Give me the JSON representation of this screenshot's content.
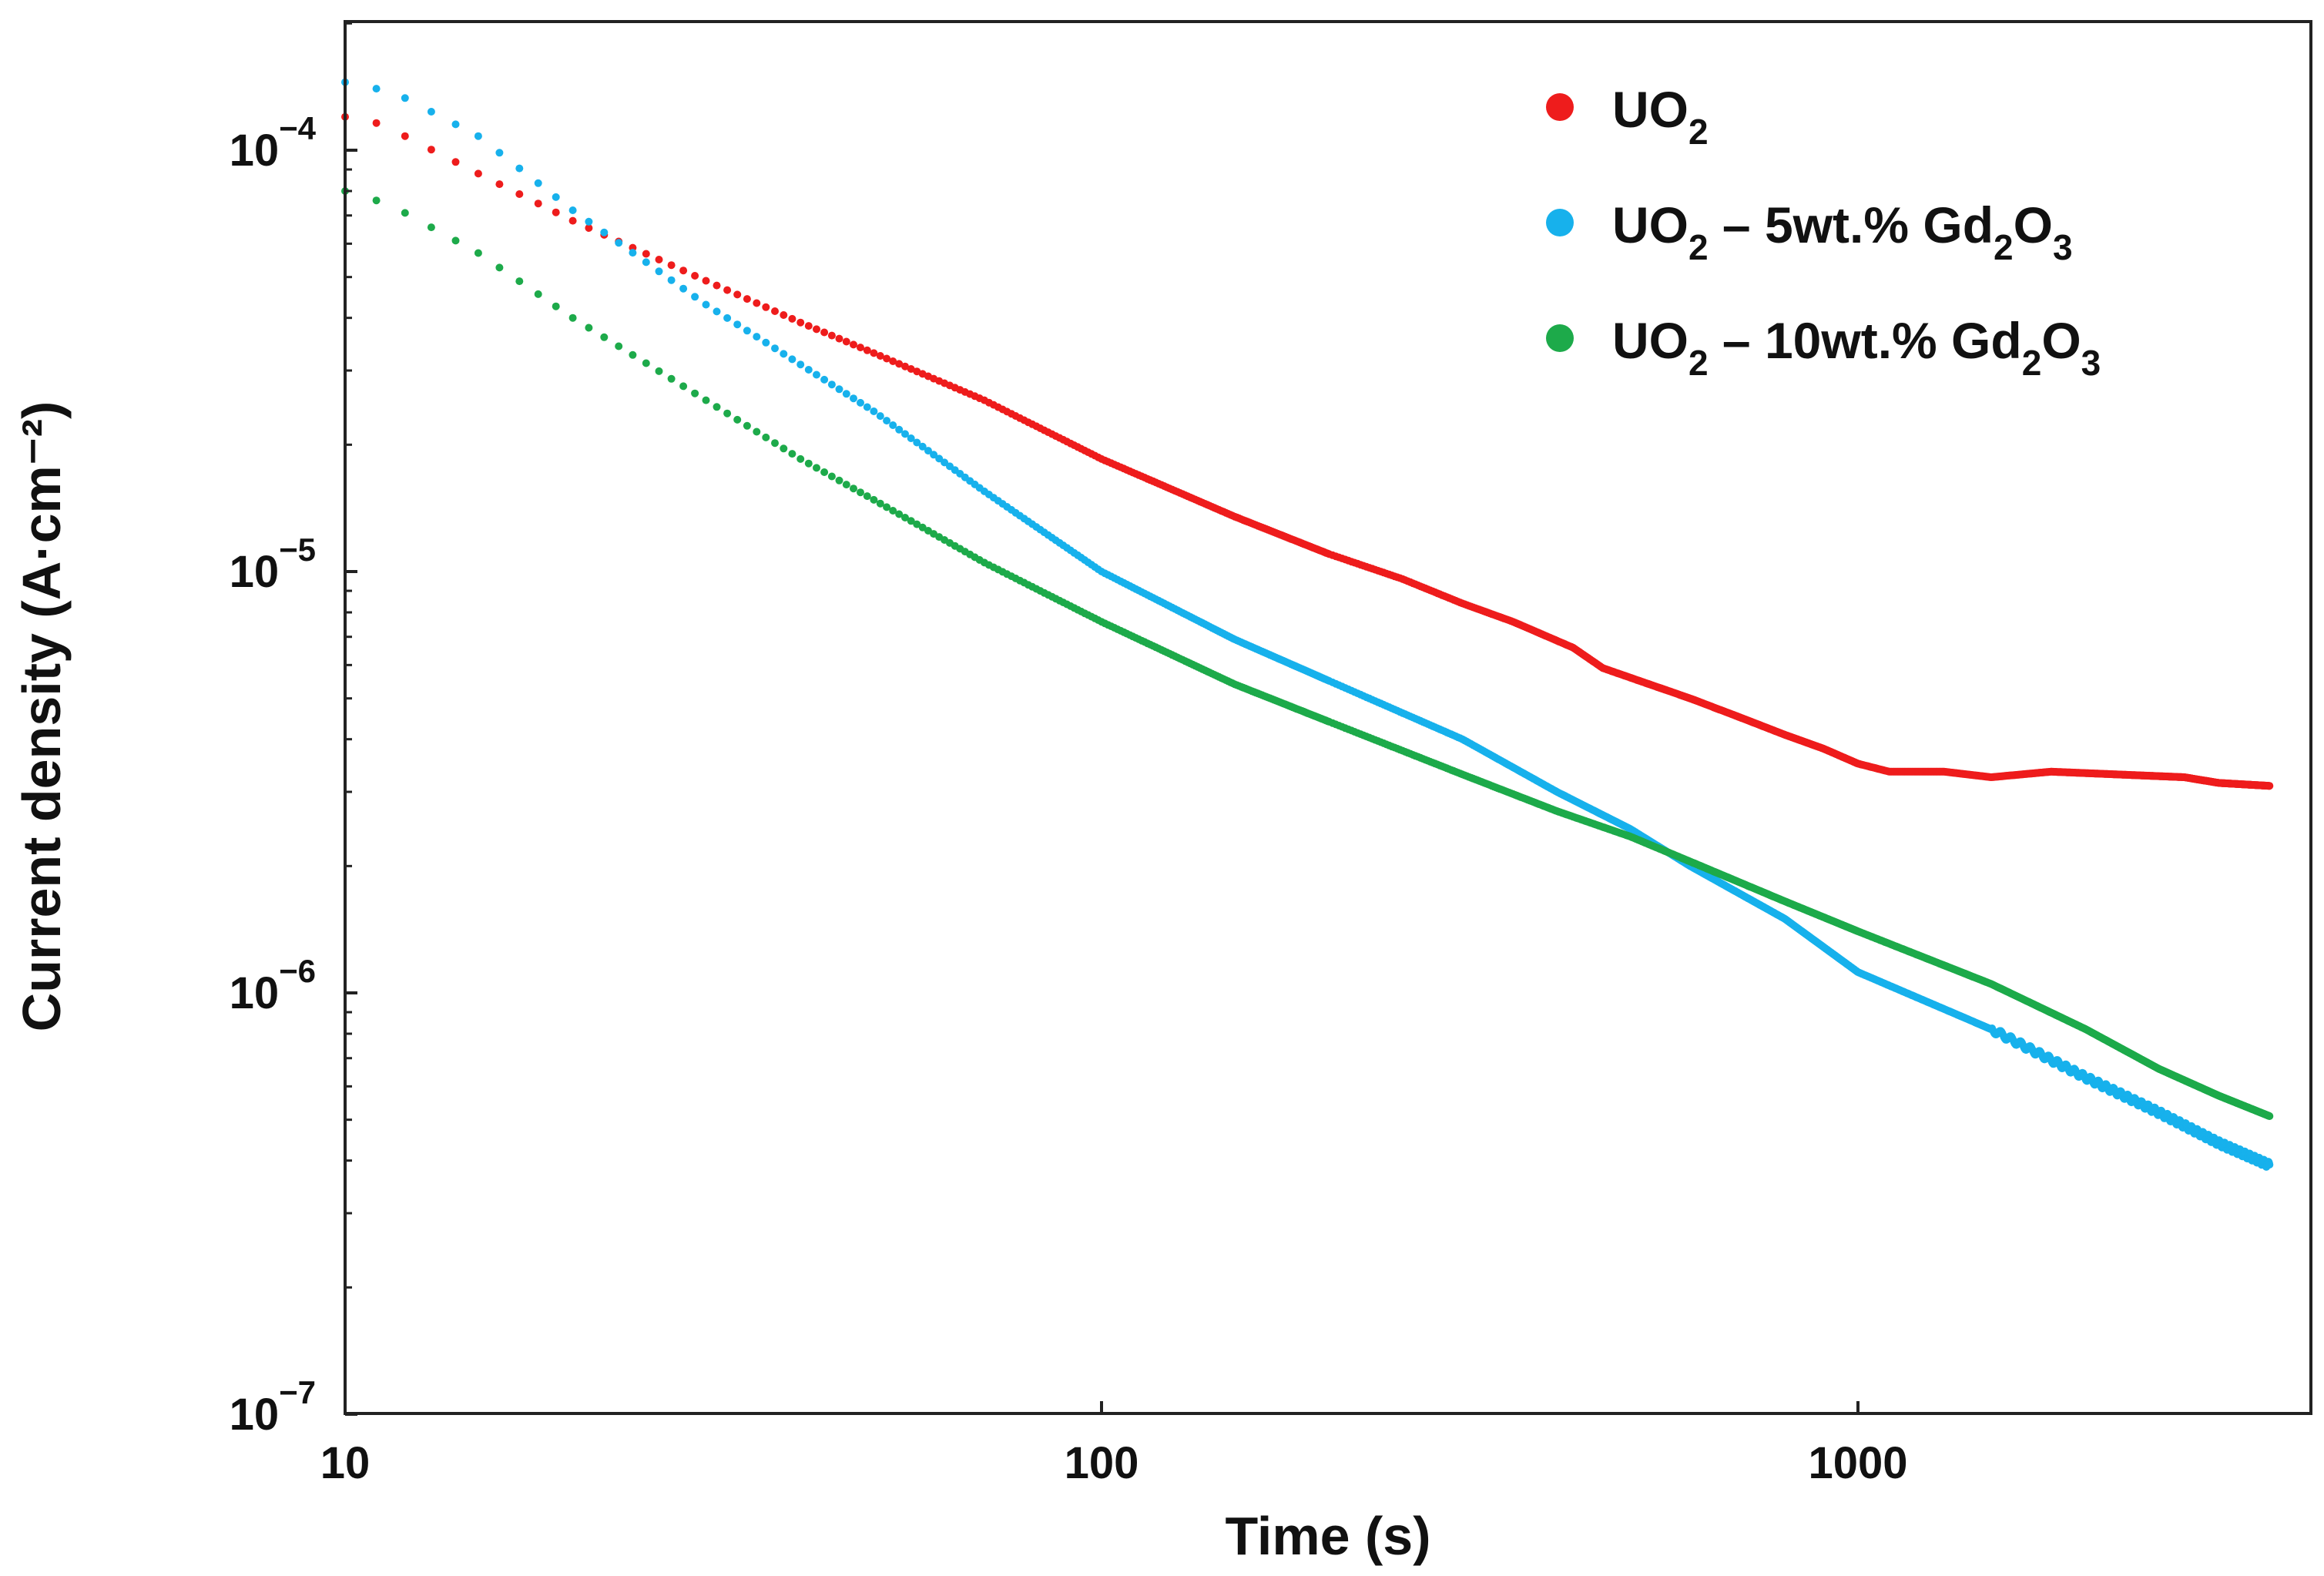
{
  "chart_data": {
    "type": "scatter",
    "title": "",
    "xlabel": "Time (s)",
    "ylabel": "Current density (A·cm⁻²)",
    "x_scale": "log",
    "y_scale": "log",
    "xlim": [
      10,
      3500
    ],
    "ylim": [
      1e-07,
      0.0002
    ],
    "grid": false,
    "legend_position": "top-right",
    "x_ticks": [
      {
        "value": 10,
        "label": "10"
      },
      {
        "value": 100,
        "label": "100"
      },
      {
        "value": 1000,
        "label": "1000"
      }
    ],
    "y_ticks": [
      {
        "value": 0.0001,
        "base": "10",
        "exp": "−4"
      },
      {
        "value": 1e-05,
        "base": "10",
        "exp": "−5"
      },
      {
        "value": 1e-06,
        "base": "10",
        "exp": "−6"
      },
      {
        "value": 1e-07,
        "base": "10",
        "exp": "−7"
      }
    ],
    "series": [
      {
        "name": "UO2",
        "label_main": "UO",
        "label_sub": "2",
        "label_rest": "",
        "color": "#ee1c1c",
        "points": [
          [
            10,
            0.00012
          ],
          [
            11,
            0.000116
          ],
          [
            12,
            0.000108
          ],
          [
            15,
            8.8e-05
          ],
          [
            20,
            6.8e-05
          ],
          [
            30,
            4.9e-05
          ],
          [
            40,
            3.9e-05
          ],
          [
            50,
            3.3e-05
          ],
          [
            70,
            2.55e-05
          ],
          [
            100,
            1.85e-05
          ],
          [
            150,
            1.35e-05
          ],
          [
            200,
            1.1e-05
          ],
          [
            250,
            9.6e-06
          ],
          [
            300,
            8.4e-06
          ],
          [
            350,
            7.6e-06
          ],
          [
            420,
            6.6e-06
          ],
          [
            460,
            5.9e-06
          ],
          [
            500,
            5.6e-06
          ],
          [
            600,
            5e-06
          ],
          [
            700,
            4.5e-06
          ],
          [
            800,
            4.1e-06
          ],
          [
            900,
            3.8e-06
          ],
          [
            1000,
            3.5e-06
          ],
          [
            1100,
            3.35e-06
          ],
          [
            1300,
            3.35e-06
          ],
          [
            1500,
            3.25e-06
          ],
          [
            1800,
            3.35e-06
          ],
          [
            2200,
            3.3e-06
          ],
          [
            2700,
            3.25e-06
          ],
          [
            3000,
            3.15e-06
          ],
          [
            3500,
            3.1e-06
          ]
        ]
      },
      {
        "name": "UO2 – 5wt.% Gd2O3",
        "label_main": "UO",
        "label_sub": "2",
        "label_rest": " – 5wt.% Gd",
        "label_sub2": "2",
        "label_tail": "O",
        "label_sub3": "3",
        "color": "#17b1ec",
        "points": [
          [
            10,
            0.000145
          ],
          [
            11,
            0.00014
          ],
          [
            12,
            0.000133
          ],
          [
            15,
            0.000108
          ],
          [
            20,
            7.2e-05
          ],
          [
            30,
            4.3e-05
          ],
          [
            40,
            3.1e-05
          ],
          [
            50,
            2.4e-05
          ],
          [
            70,
            1.55e-05
          ],
          [
            100,
            1e-05
          ],
          [
            150,
            6.9e-06
          ],
          [
            200,
            5.5e-06
          ],
          [
            300,
            4e-06
          ],
          [
            400,
            3e-06
          ],
          [
            500,
            2.45e-06
          ],
          [
            600,
            2e-06
          ],
          [
            800,
            1.5e-06
          ],
          [
            1000,
            1.12e-06
          ],
          [
            1500,
            8.2e-07
          ],
          [
            2000,
            6.3e-07
          ],
          [
            2500,
            5.2e-07
          ],
          [
            3000,
            4.4e-07
          ],
          [
            3500,
            3.9e-07
          ]
        ]
      },
      {
        "name": "UO2 – 10wt.% Gd2O3",
        "label_main": "UO",
        "label_sub": "2",
        "label_rest": " – 10wt.% Gd",
        "label_sub2": "2",
        "label_tail": "O",
        "label_sub3": "3",
        "color": "#1daa4a",
        "points": [
          [
            10,
            8e-05
          ],
          [
            11,
            7.6e-05
          ],
          [
            12,
            7.1e-05
          ],
          [
            15,
            5.7e-05
          ],
          [
            20,
            4e-05
          ],
          [
            30,
            2.55e-05
          ],
          [
            40,
            1.85e-05
          ],
          [
            50,
            1.48e-05
          ],
          [
            70,
            1.05e-05
          ],
          [
            100,
            7.6e-06
          ],
          [
            150,
            5.4e-06
          ],
          [
            200,
            4.4e-06
          ],
          [
            300,
            3.3e-06
          ],
          [
            400,
            2.7e-06
          ],
          [
            500,
            2.35e-06
          ],
          [
            600,
            2.05e-06
          ],
          [
            800,
            1.65e-06
          ],
          [
            1000,
            1.4e-06
          ],
          [
            1500,
            1.05e-06
          ],
          [
            2000,
            8.2e-07
          ],
          [
            2500,
            6.6e-07
          ],
          [
            3000,
            5.7e-07
          ],
          [
            3500,
            5.1e-07
          ]
        ]
      }
    ]
  }
}
